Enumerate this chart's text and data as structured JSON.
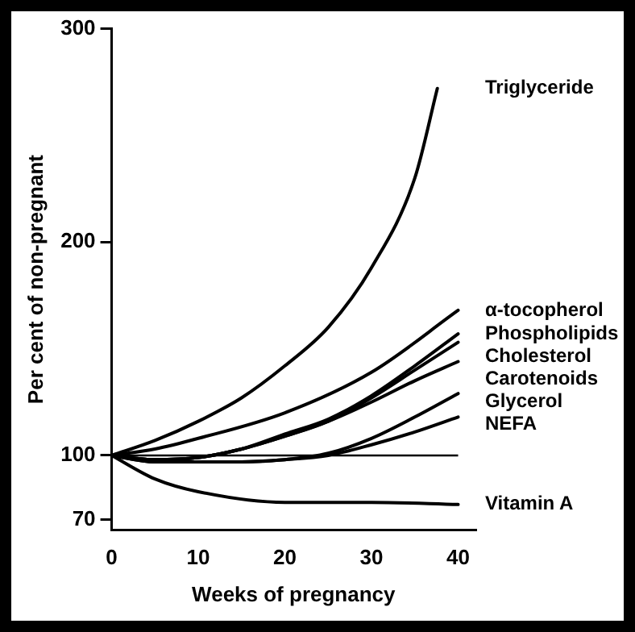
{
  "chart_data": {
    "type": "line",
    "xlabel": "Weeks of pregnancy",
    "ylabel": "Per cent of non-pregnant",
    "xlim": [
      0,
      42
    ],
    "xticks": [
      0,
      10,
      20,
      30,
      40
    ],
    "ylim": [
      65,
      300
    ],
    "yticks": [
      70,
      100,
      200,
      300
    ],
    "grid": false,
    "legend": false,
    "marker": "none",
    "line_style": "solid",
    "ref_lines": [
      {
        "axis": "y",
        "value": 100,
        "color": "#000000"
      }
    ],
    "series": [
      {
        "name": "Triglyceride",
        "color": "#000000",
        "x": [
          0,
          5,
          10,
          15,
          20,
          25,
          30,
          35,
          37.6
        ],
        "values": [
          100,
          107,
          116,
          127,
          142,
          160,
          188,
          230,
          272
        ]
      },
      {
        "name": "α-tocopherol",
        "color": "#000000",
        "x": [
          0,
          5,
          10,
          20,
          30,
          40
        ],
        "values": [
          100,
          103,
          108,
          120,
          139,
          168
        ]
      },
      {
        "name": "Phospholipids",
        "color": "#000000",
        "x": [
          0,
          5,
          10,
          15,
          20,
          25,
          30,
          35,
          40
        ],
        "values": [
          100,
          98,
          99,
          103,
          110,
          117,
          128,
          142,
          157
        ]
      },
      {
        "name": "Cholesterol",
        "color": "#000000",
        "x": [
          0,
          5,
          10,
          15,
          20,
          25,
          30,
          35,
          40
        ],
        "values": [
          100,
          98,
          99,
          103,
          109,
          116,
          127,
          140,
          153
        ]
      },
      {
        "name": "Carotenoids",
        "color": "#000000",
        "x": [
          0,
          5,
          10,
          15,
          20,
          25,
          30,
          35,
          40
        ],
        "values": [
          100,
          98,
          99,
          103,
          109,
          116,
          125,
          135,
          144
        ]
      },
      {
        "name": "Glycerol",
        "color": "#000000",
        "x": [
          0,
          5,
          10,
          15,
          20,
          25,
          30,
          35,
          40
        ],
        "values": [
          100,
          97,
          97,
          97,
          98,
          101,
          108,
          118,
          129
        ]
      },
      {
        "name": "NEFA",
        "color": "#000000",
        "x": [
          0,
          5,
          10,
          15,
          20,
          25,
          30,
          35,
          40
        ],
        "values": [
          100,
          97,
          97,
          97,
          98,
          100,
          105,
          111,
          118
        ]
      },
      {
        "name": "Vitamin A",
        "color": "#000000",
        "x": [
          0,
          5,
          10,
          20,
          30,
          40
        ],
        "values": [
          100,
          89,
          83,
          78,
          78,
          77
        ]
      }
    ]
  }
}
